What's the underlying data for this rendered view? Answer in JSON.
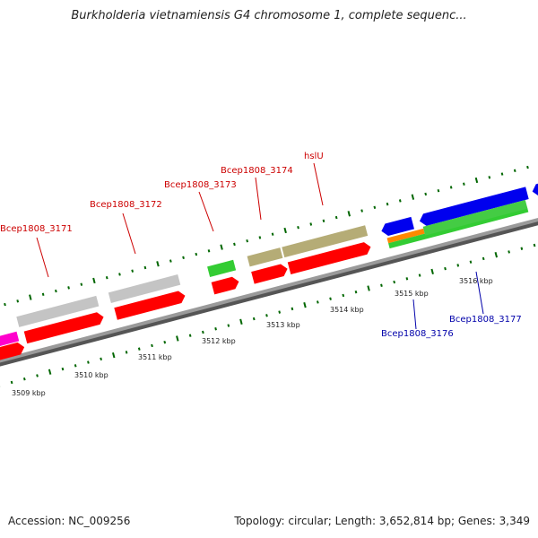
{
  "title": "Burkholderia vietnamiensis G4 chromosome 1, complete sequenc...",
  "footer": {
    "accession": "Accession: NC_009256",
    "topology": "Topology: circular; Length: 3,652,814 bp; Genes: 3,349"
  },
  "colors": {
    "cds": "#ff0000",
    "gray_feature": "#c0c0c0",
    "green_feature": "#33cc33",
    "olive_feature": "#b0a870",
    "blue_feature": "#0000ee",
    "magenta_feature": "#ff00cc",
    "orange_feature": "#ff8800",
    "backbone": "#888888",
    "ticks": "#006600",
    "red_label": "#cc0000",
    "blue_label": "#0000aa"
  },
  "scale_labels": [
    "3509 kbp",
    "3510 kbp",
    "3511 kbp",
    "3512 kbp",
    "3513 kbp",
    "3514 kbp",
    "3515 kbp",
    "3516 kbp"
  ],
  "gene_labels_top": [
    "Bcep1808_3171",
    "Bcep1808_3172",
    "Bcep1808_3173",
    "Bcep1808_3174",
    "hslU"
  ],
  "gene_labels_bottom": [
    "Bcep1808_3176",
    "Bcep1808_3177"
  ]
}
